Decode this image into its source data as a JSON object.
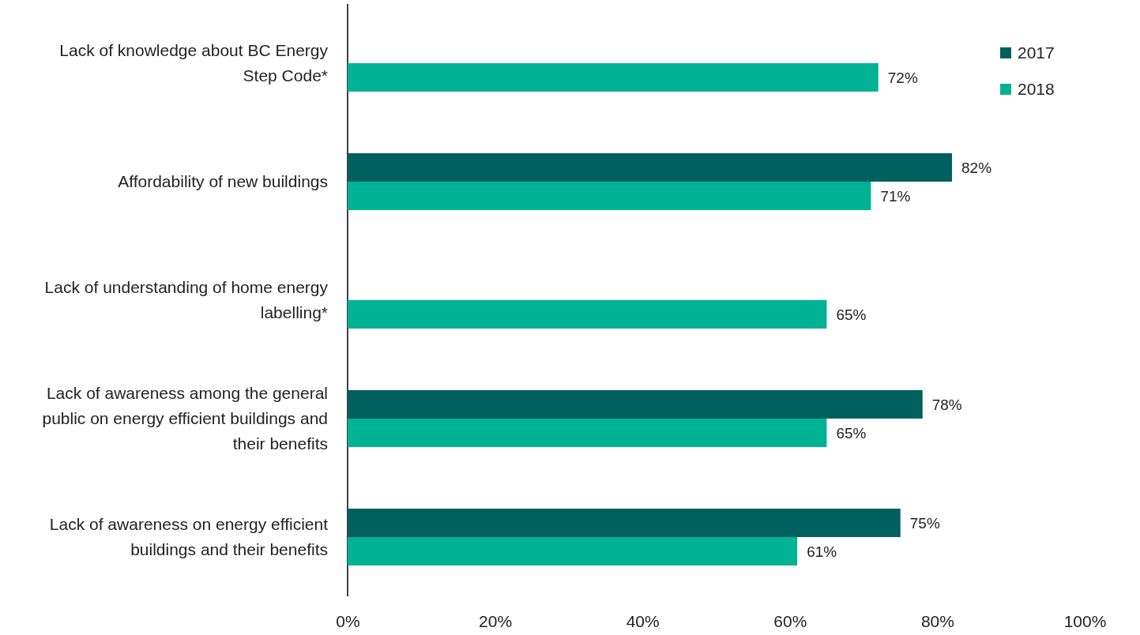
{
  "chart_data": {
    "type": "bar",
    "orientation": "horizontal",
    "categories": [
      "Lack of knowledge about BC Energy Step Code*",
      "Affordability of new buildings",
      "Lack of understanding of home energy labelling*",
      "Lack of awareness among the general public on energy efficient buildings and their benefits",
      "Lack of awareness on energy efficient buildings and their benefits"
    ],
    "series": [
      {
        "name": "2017",
        "color": "#00605f",
        "values": [
          null,
          82,
          null,
          78,
          75
        ],
        "value_labels": [
          null,
          "82%",
          null,
          "78%",
          "75%"
        ]
      },
      {
        "name": "2018",
        "color": "#00b294",
        "values": [
          72,
          71,
          65,
          65,
          61
        ],
        "value_labels": [
          "72%",
          "71%",
          "65%",
          "65%",
          "61%"
        ]
      }
    ],
    "xlim": [
      0,
      100
    ],
    "xticks": [
      {
        "value": 0,
        "label": "0%"
      },
      {
        "value": 20,
        "label": "20%"
      },
      {
        "value": 40,
        "label": "40%"
      },
      {
        "value": 60,
        "label": "60%"
      },
      {
        "value": 80,
        "label": "80%"
      },
      {
        "value": 100,
        "label": "100%"
      }
    ],
    "legend": "top right",
    "grid": false
  }
}
